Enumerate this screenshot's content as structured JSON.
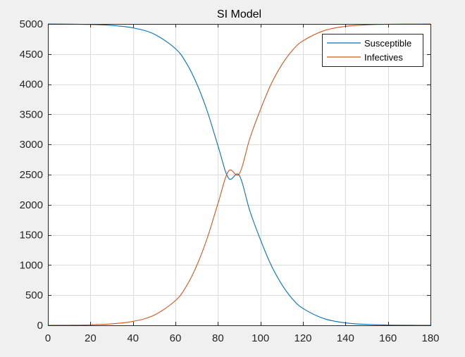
{
  "colors": {
    "figure_background": "#f0f0f0",
    "plot_background": "#ffffff",
    "axis": "#262626",
    "grid": "#dcdcdc",
    "susceptible": "#0072bd",
    "infectives": "#d95319"
  },
  "chart_data": {
    "type": "line",
    "title": "SI Model",
    "xlabel": "",
    "ylabel": "",
    "xlim": [
      0,
      180
    ],
    "ylim": [
      0,
      5000
    ],
    "xticks": [
      0,
      20,
      40,
      60,
      80,
      100,
      120,
      140,
      160,
      180
    ],
    "yticks": [
      0,
      500,
      1000,
      1500,
      2000,
      2500,
      3000,
      3500,
      4000,
      4500,
      5000
    ],
    "grid": true,
    "legend_location": "top-right",
    "x": [
      0,
      10,
      20,
      30,
      40,
      50,
      60,
      65,
      70,
      75,
      80,
      85,
      90,
      95,
      100,
      105,
      110,
      115,
      120,
      130,
      140,
      150,
      160,
      170,
      180
    ],
    "series": [
      {
        "name": "Susceptible",
        "color": "#0072bd",
        "values": [
          4999,
          4997,
          4991,
          4976,
          4935,
          4831,
          4590,
          4360,
          4010,
          3550,
          2980,
          2440,
          2490,
          1900,
          1420,
          1000,
          680,
          440,
          280,
          110,
          40,
          15,
          5,
          2,
          1
        ]
      },
      {
        "name": "Infectives",
        "color": "#d95319",
        "values": [
          1,
          3,
          9,
          24,
          65,
          169,
          410,
          640,
          990,
          1450,
          2020,
          2560,
          2510,
          3100,
          3580,
          4000,
          4320,
          4560,
          4720,
          4890,
          4960,
          4985,
          4995,
          4998,
          4999
        ]
      }
    ]
  }
}
